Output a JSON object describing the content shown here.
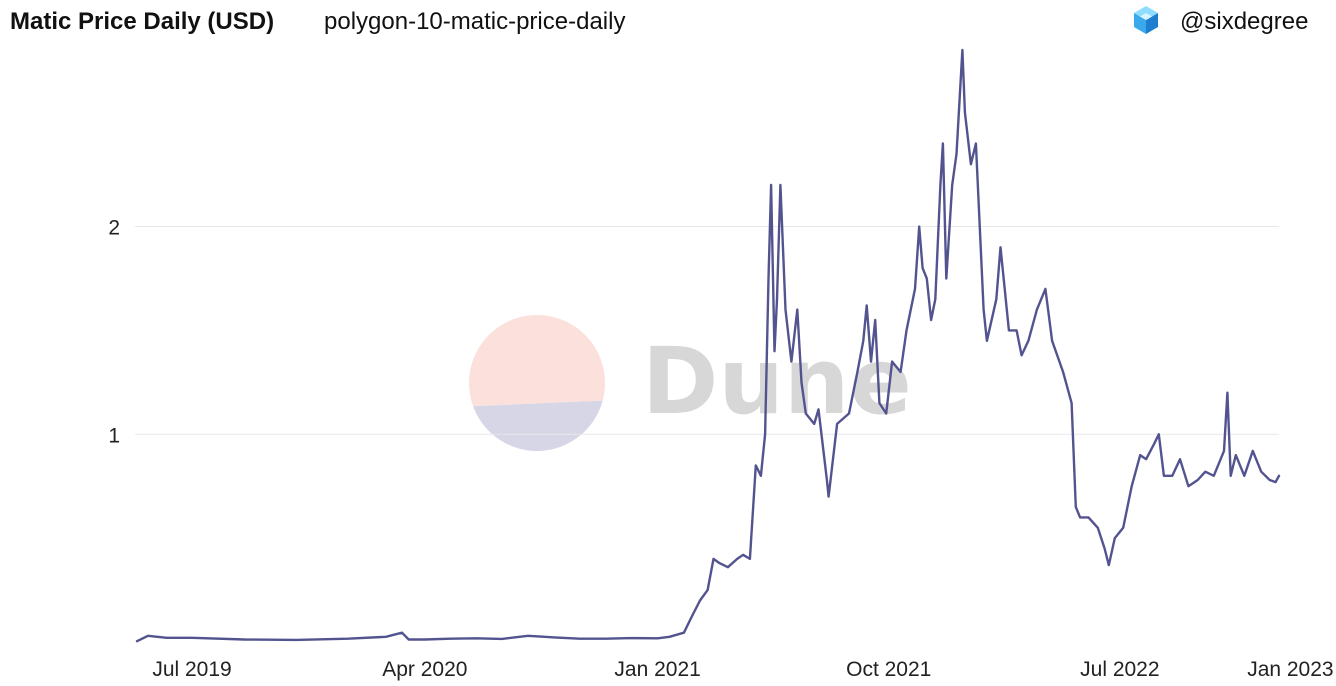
{
  "header": {
    "title": "Matic Price Daily (USD)",
    "subtitle": "polygon-10-matic-price-daily",
    "owner": "@sixdegree",
    "owner_icon": "cube-logo-icon"
  },
  "watermark": {
    "text": "Dune",
    "colors": {
      "top": "#fce0db",
      "bottom": "#d6d6e6",
      "text": "#d7d7d7"
    }
  },
  "colors": {
    "line": "#53548f",
    "grid": "#e8e8e8"
  },
  "chart_data": {
    "type": "line",
    "title": "Matic Price Daily (USD)",
    "xlabel": "",
    "ylabel": "",
    "x_range": [
      "2019-04-27",
      "2023-01-05"
    ],
    "ylim": [
      0,
      2.85
    ],
    "y_ticks": [
      1,
      2
    ],
    "x_ticks": [
      "Jul 2019",
      "Apr 2020",
      "Jan 2021",
      "Oct 2021",
      "Jul 2022",
      "Jan 2023"
    ],
    "grid": true,
    "legend": "none",
    "series": [
      {
        "name": "",
        "points": [
          [
            "2019-04-27",
            0.004
          ],
          [
            "2019-05-10",
            0.03
          ],
          [
            "2019-06-01",
            0.02
          ],
          [
            "2019-07-01",
            0.02
          ],
          [
            "2019-09-01",
            0.012
          ],
          [
            "2019-11-01",
            0.01
          ],
          [
            "2020-01-01",
            0.016
          ],
          [
            "2020-02-15",
            0.025
          ],
          [
            "2020-03-05",
            0.045
          ],
          [
            "2020-03-13",
            0.012
          ],
          [
            "2020-04-01",
            0.012
          ],
          [
            "2020-05-01",
            0.016
          ],
          [
            "2020-06-01",
            0.018
          ],
          [
            "2020-07-01",
            0.015
          ],
          [
            "2020-08-01",
            0.03
          ],
          [
            "2020-09-01",
            0.022
          ],
          [
            "2020-10-01",
            0.016
          ],
          [
            "2020-11-01",
            0.016
          ],
          [
            "2020-12-01",
            0.019
          ],
          [
            "2021-01-01",
            0.018
          ],
          [
            "2021-01-15",
            0.025
          ],
          [
            "2021-02-01",
            0.045
          ],
          [
            "2021-02-10",
            0.12
          ],
          [
            "2021-02-20",
            0.2
          ],
          [
            "2021-03-01",
            0.25
          ],
          [
            "2021-03-08",
            0.4
          ],
          [
            "2021-03-15",
            0.38
          ],
          [
            "2021-03-25",
            0.36
          ],
          [
            "2021-04-05",
            0.4
          ],
          [
            "2021-04-12",
            0.42
          ],
          [
            "2021-04-20",
            0.4
          ],
          [
            "2021-04-27",
            0.85
          ],
          [
            "2021-05-03",
            0.8
          ],
          [
            "2021-05-08",
            1.0
          ],
          [
            "2021-05-12",
            1.75
          ],
          [
            "2021-05-15",
            2.2
          ],
          [
            "2021-05-19",
            1.4
          ],
          [
            "2021-05-22",
            1.65
          ],
          [
            "2021-05-26",
            2.2
          ],
          [
            "2021-06-01",
            1.6
          ],
          [
            "2021-06-08",
            1.35
          ],
          [
            "2021-06-15",
            1.6
          ],
          [
            "2021-06-20",
            1.25
          ],
          [
            "2021-06-25",
            1.1
          ],
          [
            "2021-07-05",
            1.05
          ],
          [
            "2021-07-10",
            1.12
          ],
          [
            "2021-07-20",
            0.78
          ],
          [
            "2021-07-22",
            0.7
          ],
          [
            "2021-08-01",
            1.05
          ],
          [
            "2021-08-15",
            1.1
          ],
          [
            "2021-08-25",
            1.3
          ],
          [
            "2021-09-01",
            1.45
          ],
          [
            "2021-09-05",
            1.62
          ],
          [
            "2021-09-10",
            1.35
          ],
          [
            "2021-09-15",
            1.55
          ],
          [
            "2021-09-20",
            1.15
          ],
          [
            "2021-09-28",
            1.1
          ],
          [
            "2021-10-05",
            1.35
          ],
          [
            "2021-10-15",
            1.3
          ],
          [
            "2021-10-22",
            1.5
          ],
          [
            "2021-11-01",
            1.7
          ],
          [
            "2021-11-06",
            2.0
          ],
          [
            "2021-11-10",
            1.8
          ],
          [
            "2021-11-15",
            1.75
          ],
          [
            "2021-11-20",
            1.55
          ],
          [
            "2021-11-25",
            1.65
          ],
          [
            "2021-12-01",
            2.2
          ],
          [
            "2021-12-04",
            2.4
          ],
          [
            "2021-12-08",
            1.75
          ],
          [
            "2021-12-15",
            2.2
          ],
          [
            "2021-12-20",
            2.35
          ],
          [
            "2021-12-27",
            2.85
          ],
          [
            "2021-12-30",
            2.55
          ],
          [
            "2022-01-06",
            2.3
          ],
          [
            "2022-01-12",
            2.4
          ],
          [
            "2022-01-21",
            1.6
          ],
          [
            "2022-01-25",
            1.45
          ],
          [
            "2022-02-05",
            1.65
          ],
          [
            "2022-02-10",
            1.9
          ],
          [
            "2022-02-20",
            1.5
          ],
          [
            "2022-03-01",
            1.5
          ],
          [
            "2022-03-07",
            1.38
          ],
          [
            "2022-03-15",
            1.45
          ],
          [
            "2022-03-25",
            1.6
          ],
          [
            "2022-04-04",
            1.7
          ],
          [
            "2022-04-12",
            1.45
          ],
          [
            "2022-04-25",
            1.3
          ],
          [
            "2022-05-05",
            1.15
          ],
          [
            "2022-05-10",
            0.65
          ],
          [
            "2022-05-15",
            0.6
          ],
          [
            "2022-05-25",
            0.6
          ],
          [
            "2022-06-05",
            0.55
          ],
          [
            "2022-06-13",
            0.45
          ],
          [
            "2022-06-18",
            0.37
          ],
          [
            "2022-06-25",
            0.5
          ],
          [
            "2022-07-05",
            0.55
          ],
          [
            "2022-07-15",
            0.75
          ],
          [
            "2022-07-25",
            0.9
          ],
          [
            "2022-08-01",
            0.88
          ],
          [
            "2022-08-10",
            0.95
          ],
          [
            "2022-08-16",
            1.0
          ],
          [
            "2022-08-22",
            0.8
          ],
          [
            "2022-09-01",
            0.8
          ],
          [
            "2022-09-10",
            0.88
          ],
          [
            "2022-09-20",
            0.75
          ],
          [
            "2022-10-01",
            0.78
          ],
          [
            "2022-10-10",
            0.82
          ],
          [
            "2022-10-20",
            0.8
          ],
          [
            "2022-11-01",
            0.92
          ],
          [
            "2022-11-05",
            1.2
          ],
          [
            "2022-11-09",
            0.8
          ],
          [
            "2022-11-15",
            0.9
          ],
          [
            "2022-11-25",
            0.8
          ],
          [
            "2022-12-05",
            0.92
          ],
          [
            "2022-12-15",
            0.82
          ],
          [
            "2022-12-25",
            0.78
          ],
          [
            "2023-01-01",
            0.77
          ],
          [
            "2023-01-05",
            0.8
          ]
        ]
      }
    ]
  }
}
